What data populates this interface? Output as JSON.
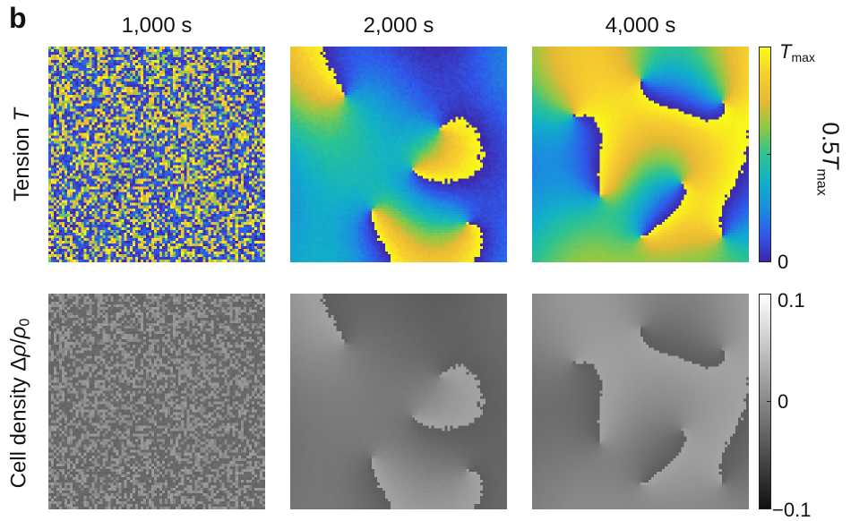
{
  "figure": {
    "panel_letter": "b",
    "column_titles": [
      "1,000 s",
      "2,000 s",
      "4,000 s"
    ],
    "rows": [
      {
        "label_prefix": "Tension ",
        "label_symbol": "T"
      },
      {
        "label_prefix": "Cell density Δ",
        "label_symbol": "ρ",
        "label_mid": "/",
        "label_symbol2": "ρ",
        "label_sub": "0"
      }
    ]
  },
  "colorbar_tension": {
    "top_label_symbol": "T",
    "top_label_sub": "max",
    "bottom_label": "0",
    "side_label_prefix": "0.5",
    "side_label_symbol": "T",
    "side_label_sub": "max",
    "colors": [
      "#3e26a8",
      "#2f58ea",
      "#1a8fde",
      "#11b0c7",
      "#2dc38f",
      "#8cc847",
      "#e6b933",
      "#f7ce2f",
      "#f9fb15"
    ]
  },
  "colorbar_density": {
    "top_label": "0.1",
    "mid_label": "0",
    "bottom_label": "−0.1",
    "colors": [
      "#111111",
      "#ffffff"
    ]
  }
}
